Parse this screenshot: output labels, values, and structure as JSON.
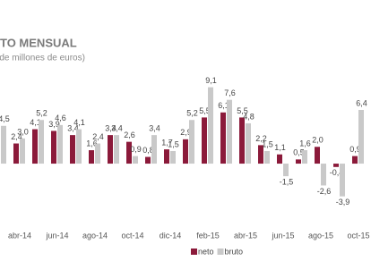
{
  "chart_data": {
    "type": "bar",
    "title": "TO MENSUAL",
    "subtitle": "(de millones de euros)",
    "categories": [
      null,
      "abr-14",
      null,
      "jun-14",
      null,
      "ago-14",
      null,
      "oct-14",
      null,
      "dic-14",
      null,
      "feb-15",
      null,
      "abr-15",
      null,
      "jun-15",
      null,
      "ago-15",
      null,
      "oct-15"
    ],
    "series": [
      {
        "name": "neto",
        "color": "#8b1a3a",
        "values": [
          3.5,
          2.4,
          4.1,
          3.9,
          3.4,
          1.6,
          3.4,
          2.6,
          0.8,
          1.7,
          2.9,
          5.5,
          6.1,
          5.5,
          2.2,
          1.1,
          0.5,
          2.0,
          -0.4,
          0.9
        ],
        "value_labels": [
          null,
          "2,4",
          "4,1",
          "3,9",
          "3,4",
          "1,6",
          "3,4",
          "2,6",
          "0,8",
          "1,7",
          "2,9",
          "5,5",
          "6,1",
          "5,5",
          "2,2",
          "1,1",
          "0,5",
          "2,0",
          "-0,4",
          "0,9"
        ]
      },
      {
        "name": "bruto",
        "color": "#c9c9c9",
        "values": [
          4.5,
          3.0,
          5.2,
          4.6,
          4.1,
          2.4,
          3.4,
          0.9,
          3.4,
          1.5,
          5.2,
          9.1,
          7.6,
          4.8,
          1.5,
          -1.5,
          1.6,
          -2.6,
          -3.9,
          6.4
        ],
        "value_labels": [
          "4,5",
          "3,0",
          "5,2",
          "4,6",
          "4,1",
          "2,4",
          "3,4",
          "0,9",
          "3,4",
          "1,5",
          "5,2",
          "9,1",
          "7,6",
          "4,8",
          "1,5",
          "-1,5",
          "1,6",
          "-2,6",
          "-3,9",
          "6,4"
        ]
      }
    ],
    "ylim": [
      -5,
      13
    ],
    "legend": "bottom"
  }
}
